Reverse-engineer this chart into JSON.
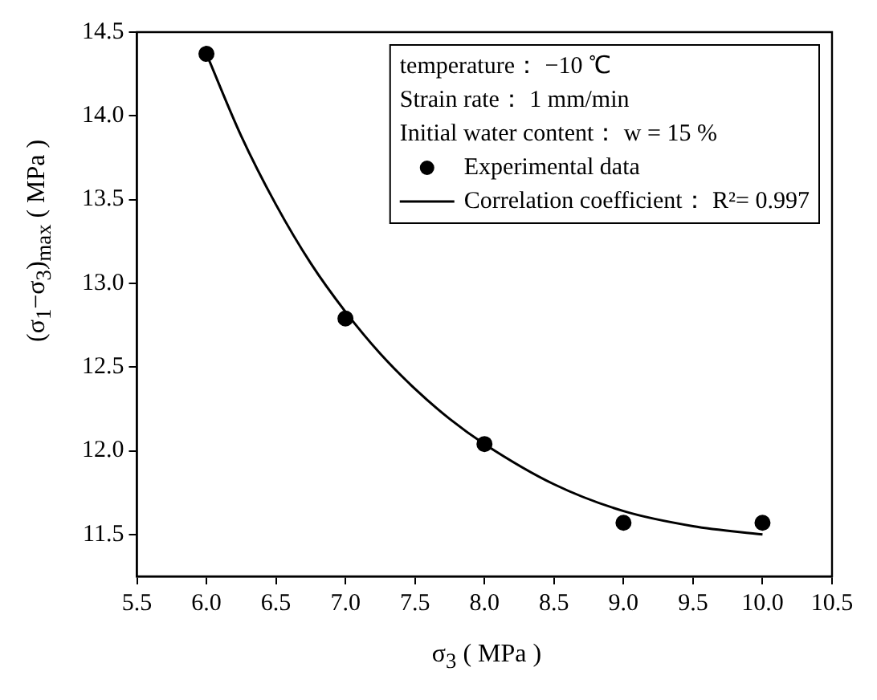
{
  "chart_data": {
    "type": "scatter",
    "xlabel": "σ$_{3}$ ( MPa )",
    "ylabel": "(σ$_{1}$−σ$_{3}$)$_{max}$ ( MPa )",
    "annotations": [
      "temperature： −10 ℃",
      "Strain rate： 1 mm/min",
      "Initial water content： w = 15 %"
    ],
    "series": [
      {
        "name": "Experimental data",
        "color": "#000000",
        "marker": "circle",
        "x": [
          6,
          7,
          8,
          9,
          10
        ],
        "values": [
          14.37,
          12.79,
          12.04,
          11.57,
          11.57
        ]
      },
      {
        "name": "Correlation coefficient： R²= 0.997",
        "type": "line",
        "color": "#000000",
        "marker": "none",
        "line_style": "solid",
        "x": [
          6,
          6.25,
          6.5,
          6.75,
          7,
          7.25,
          7.5,
          7.75,
          8,
          8.5,
          9,
          9.5,
          10
        ],
        "values": [
          14.37,
          13.88,
          13.47,
          13.12,
          12.83,
          12.58,
          12.37,
          12.19,
          12.04,
          11.8,
          11.64,
          11.55,
          11.5
        ]
      }
    ],
    "xlim": [
      5.5,
      10.5
    ],
    "xticks": [
      5.5,
      {
        "value": 6,
        "label": "6.0"
      },
      6.5,
      {
        "value": 7,
        "label": "7.0"
      },
      7.5,
      {
        "value": 8,
        "label": "8.0"
      },
      8.5,
      {
        "value": 9,
        "label": "9.0"
      },
      9.5,
      {
        "value": 10,
        "label": "10.0"
      },
      10.5
    ],
    "ylim": [
      11.25,
      14.5
    ],
    "yticks": [
      11.5,
      {
        "value": 12,
        "label": "12.0"
      },
      12.5,
      {
        "value": 13,
        "label": "13.0"
      },
      13.5,
      {
        "value": 14,
        "label": "14.0"
      },
      14.5
    ],
    "grid": false,
    "legend": "top right"
  }
}
